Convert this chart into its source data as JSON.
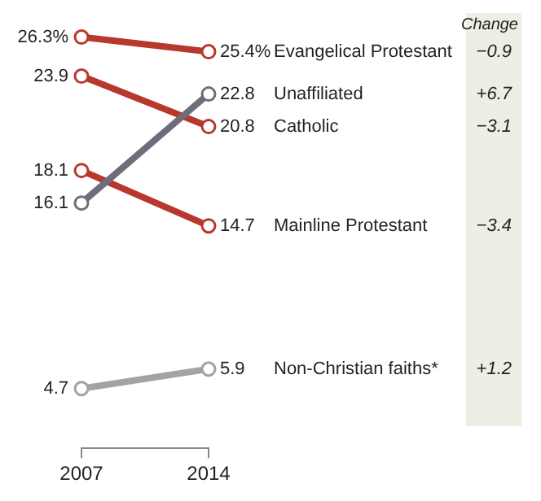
{
  "chart_data": {
    "type": "line",
    "categories": [
      "2007",
      "2014"
    ],
    "tick_labels": "x",
    "grid": false,
    "legend": false,
    "marker": "circle",
    "line_style": "solid",
    "series": [
      {
        "name": "Evangelical Protestant",
        "color": "#b8382d",
        "values": [
          26.3,
          25.4
        ],
        "value_labels": [
          "26.3%",
          "25.4%"
        ]
      },
      {
        "name": "Unaffiliated",
        "color": "#6e6d7c",
        "values": [
          16.1,
          22.8
        ],
        "value_labels": [
          "16.1",
          "22.8"
        ]
      },
      {
        "name": "Catholic",
        "color": "#b8382d",
        "values": [
          23.9,
          20.8
        ],
        "value_labels": [
          "23.9",
          "20.8"
        ]
      },
      {
        "name": "Mainline Protestant",
        "color": "#b8382d",
        "values": [
          18.1,
          14.7
        ],
        "value_labels": [
          "18.1",
          "14.7"
        ]
      },
      {
        "name": "Non-Christian faiths*",
        "color": "#a3a3a3",
        "values": [
          4.7,
          5.9
        ],
        "value_labels": [
          "4.7",
          "5.9"
        ]
      }
    ],
    "annotations": [
      "Change",
      "−0.9",
      "+6.7",
      "−3.1",
      "−3.4",
      "+1.2"
    ]
  }
}
